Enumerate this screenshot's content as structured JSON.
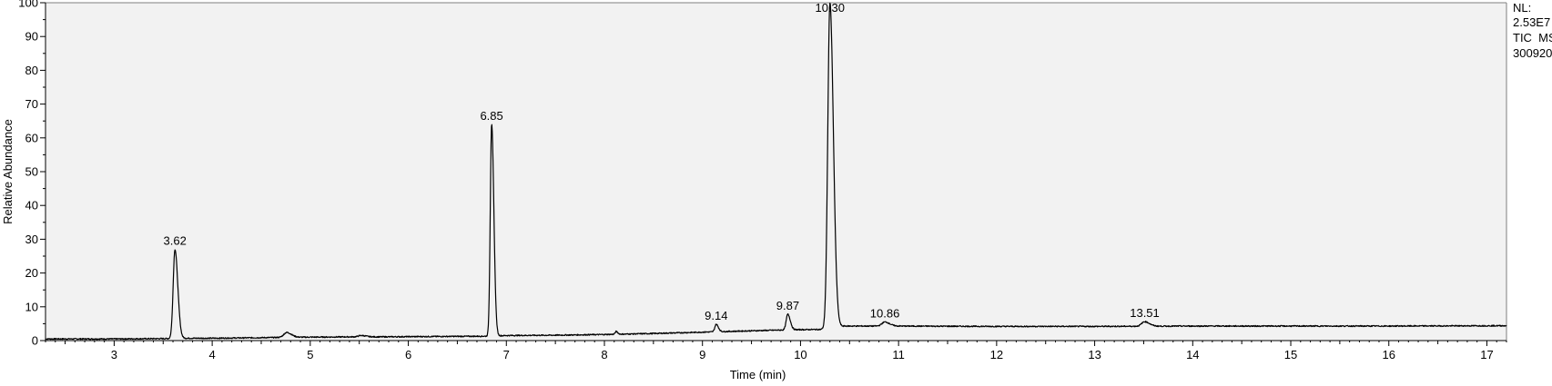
{
  "chart_data": {
    "type": "line",
    "xlabel": "Time (min)",
    "ylabel": "Relative Abundance",
    "xlim": [
      2.3,
      17.2
    ],
    "ylim": [
      0,
      100
    ],
    "x_ticks": [
      3,
      4,
      5,
      6,
      7,
      8,
      9,
      10,
      11,
      12,
      13,
      14,
      15,
      16,
      17
    ],
    "y_ticks": [
      0,
      10,
      20,
      30,
      40,
      50,
      60,
      70,
      80,
      90,
      100
    ],
    "grid": false,
    "colors": {
      "plot_bg": "#f2f2f2",
      "line": "#000000",
      "frame": "#7f7f7f"
    },
    "info": {
      "nl_label": "NL:",
      "nl_value": "2.53E7",
      "trace": "TIC  MS",
      "sample": "300920"
    },
    "baseline": [
      [
        2.3,
        0.5
      ],
      [
        3.0,
        0.5
      ],
      [
        3.55,
        0.6
      ],
      [
        3.7,
        0.7
      ],
      [
        4.0,
        0.7
      ],
      [
        4.6,
        0.9
      ],
      [
        4.9,
        1.0
      ],
      [
        5.4,
        1.1
      ],
      [
        5.7,
        1.1
      ],
      [
        6.2,
        1.2
      ],
      [
        6.8,
        1.3
      ],
      [
        7.0,
        1.5
      ],
      [
        7.5,
        1.6
      ],
      [
        8.0,
        1.8
      ],
      [
        8.5,
        2.1
      ],
      [
        9.0,
        2.5
      ],
      [
        9.5,
        2.9
      ],
      [
        9.9,
        3.2
      ],
      [
        10.2,
        3.3
      ],
      [
        10.45,
        4.3
      ],
      [
        11.0,
        4.3
      ],
      [
        12.0,
        4.2
      ],
      [
        13.0,
        4.2
      ],
      [
        14.0,
        4.3
      ],
      [
        15.0,
        4.3
      ],
      [
        16.0,
        4.3
      ],
      [
        17.2,
        4.4
      ]
    ],
    "peaks": [
      {
        "rt": 3.62,
        "height": 27,
        "width": 0.018,
        "label": "3.62"
      },
      {
        "rt": 4.76,
        "height": 2.4,
        "width": 0.03,
        "label": ""
      },
      {
        "rt": 5.52,
        "height": 1.5,
        "width": 0.03,
        "label": ""
      },
      {
        "rt": 6.85,
        "height": 64,
        "width": 0.014,
        "label": "6.85"
      },
      {
        "rt": 8.12,
        "height": 2.7,
        "width": 0.01,
        "label": ""
      },
      {
        "rt": 9.14,
        "height": 4.8,
        "width": 0.014,
        "label": "9.14"
      },
      {
        "rt": 9.87,
        "height": 7.8,
        "width": 0.016,
        "label": "9.87"
      },
      {
        "rt": 10.3,
        "height": 100,
        "width": 0.022,
        "label": "10.30"
      },
      {
        "rt": 10.86,
        "height": 5.5,
        "width": 0.03,
        "label": "10.86"
      },
      {
        "rt": 13.51,
        "height": 5.6,
        "width": 0.03,
        "label": "13.51"
      }
    ]
  }
}
